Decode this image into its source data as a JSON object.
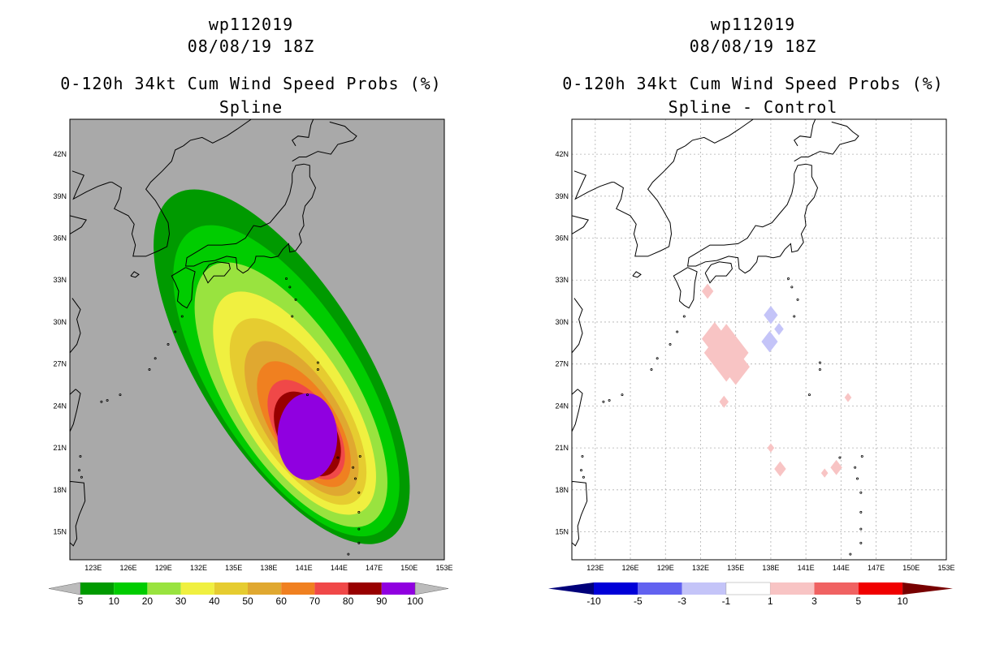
{
  "panels": [
    {
      "storm_id": "wp112019",
      "datetime": "08/08/19 18Z",
      "product": "0-120h 34kt Cum Wind Speed Probs (%)",
      "subtitle": "Spline",
      "background": "#a9a9a9",
      "colorbar": {
        "labels": [
          "5",
          "10",
          "20",
          "30",
          "40",
          "50",
          "60",
          "70",
          "80",
          "90",
          "100"
        ],
        "colors": [
          "#009a00",
          "#00cc00",
          "#99e33f",
          "#f0f040",
          "#e6cc30",
          "#e0a830",
          "#f08020",
          "#f04848",
          "#980000",
          "#9000e0"
        ],
        "end_colors": [
          "#bcbcbc",
          "#bcbcbc"
        ]
      }
    },
    {
      "storm_id": "wp112019",
      "datetime": "08/08/19 18Z",
      "product": "0-120h 34kt Cum Wind Speed Probs (%)",
      "subtitle": "Spline - Control",
      "background": "#ffffff",
      "colorbar": {
        "labels": [
          "-10",
          "-5",
          "-3",
          "-1",
          "1",
          "3",
          "5",
          "10"
        ],
        "colors": [
          "#0000d8",
          "#6262f0",
          "#c4c4f8",
          "#ffffff",
          "#f8c4c4",
          "#f06262",
          "#f00000"
        ],
        "end_colors": [
          "#00007a",
          "#780000"
        ]
      }
    }
  ],
  "chart_data": [
    {
      "type": "heatmap",
      "title": "0-120h 34kt Cum Wind Speed Probs (%) — Spline",
      "x_ticks": [
        "123E",
        "126E",
        "129E",
        "132E",
        "135E",
        "138E",
        "141E",
        "144E",
        "147E",
        "150E",
        "153E"
      ],
      "y_ticks": [
        "15N",
        "18N",
        "21N",
        "24N",
        "27N",
        "30N",
        "33N",
        "36N",
        "39N",
        "42N"
      ],
      "xlim": [
        121,
        153
      ],
      "ylim": [
        13,
        44.5
      ],
      "levels": [
        5,
        10,
        20,
        30,
        40,
        50,
        60,
        70,
        80,
        90,
        100
      ],
      "contours": [
        {
          "level": 5,
          "color": "#009a00",
          "center": [
            139.1,
            26.8
          ],
          "rx": 7.0,
          "ry": 14.5,
          "angle": -32
        },
        {
          "level": 10,
          "color": "#00cc00",
          "center": [
            139.5,
            25.8
          ],
          "rx": 6.3,
          "ry": 12.7,
          "angle": -32
        },
        {
          "level": 20,
          "color": "#99e33f",
          "center": [
            139.9,
            24.8
          ],
          "rx": 5.4,
          "ry": 10.8,
          "angle": -32
        },
        {
          "level": 30,
          "color": "#f0f040",
          "center": [
            140.2,
            24.2
          ],
          "rx": 4.6,
          "ry": 9.1,
          "angle": -32
        },
        {
          "level": 40,
          "color": "#e6cc30",
          "center": [
            140.5,
            23.6
          ],
          "rx": 3.9,
          "ry": 7.6,
          "angle": -32
        },
        {
          "level": 50,
          "color": "#e0a830",
          "center": [
            140.8,
            23.1
          ],
          "rx": 3.3,
          "ry": 6.3,
          "angle": -32
        },
        {
          "level": 60,
          "color": "#f08020",
          "center": [
            141.0,
            22.7
          ],
          "rx": 2.8,
          "ry": 5.1,
          "angle": -32
        },
        {
          "level": 70,
          "color": "#f04848",
          "center": [
            141.2,
            22.3
          ],
          "rx": 2.5,
          "ry": 4.0,
          "angle": -32
        },
        {
          "level": 80,
          "color": "#980000",
          "center": [
            141.3,
            22.0
          ],
          "rx": 2.4,
          "ry": 3.3,
          "angle": -30
        },
        {
          "level": 90,
          "color": "#9000e0",
          "center": [
            141.3,
            21.8
          ],
          "rx": 2.55,
          "ry": 3.1,
          "angle": 0
        }
      ]
    },
    {
      "type": "heatmap",
      "title": "0-120h 34kt Cum Wind Speed Probs (%) — Spline - Control",
      "x_ticks": [
        "123E",
        "126E",
        "129E",
        "132E",
        "135E",
        "138E",
        "141E",
        "144E",
        "147E",
        "150E",
        "153E"
      ],
      "y_ticks": [
        "15N",
        "18N",
        "21N",
        "24N",
        "27N",
        "30N",
        "33N",
        "36N",
        "39N",
        "42N"
      ],
      "xlim": [
        121,
        153
      ],
      "ylim": [
        13,
        44.5
      ],
      "levels": [
        -10,
        -5,
        -3,
        -1,
        1,
        3,
        5,
        10
      ],
      "anomalies": [
        {
          "value": 1.5,
          "color": "#f8c4c4",
          "lon": 134.2,
          "lat": 27.8,
          "size": 1.9
        },
        {
          "value": 1.5,
          "color": "#f8c4c4",
          "lon": 133.2,
          "lat": 28.8,
          "size": 1.1
        },
        {
          "value": 1.5,
          "color": "#f8c4c4",
          "lon": 135.0,
          "lat": 26.8,
          "size": 1.2
        },
        {
          "value": 1.2,
          "color": "#f8c4c4",
          "lon": 132.6,
          "lat": 32.2,
          "size": 0.5
        },
        {
          "value": 1.2,
          "color": "#f8c4c4",
          "lon": 134.0,
          "lat": 24.3,
          "size": 0.4
        },
        {
          "value": 1.2,
          "color": "#f8c4c4",
          "lon": 138.0,
          "lat": 21.0,
          "size": 0.3
        },
        {
          "value": 1.2,
          "color": "#f8c4c4",
          "lon": 138.8,
          "lat": 19.5,
          "size": 0.5
        },
        {
          "value": 1.2,
          "color": "#f8c4c4",
          "lon": 142.6,
          "lat": 19.2,
          "size": 0.3
        },
        {
          "value": 1.2,
          "color": "#f8c4c4",
          "lon": 143.6,
          "lat": 19.6,
          "size": 0.5
        },
        {
          "value": 1.2,
          "color": "#f8c4c4",
          "lon": 144.6,
          "lat": 24.6,
          "size": 0.3
        },
        {
          "value": -1.5,
          "color": "#c4c4f8",
          "lon": 138.0,
          "lat": 30.5,
          "size": 0.6
        },
        {
          "value": -1.5,
          "color": "#c4c4f8",
          "lon": 137.9,
          "lat": 28.6,
          "size": 0.7
        },
        {
          "value": -1.2,
          "color": "#c4c4f8",
          "lon": 138.7,
          "lat": 29.5,
          "size": 0.4
        }
      ]
    }
  ]
}
